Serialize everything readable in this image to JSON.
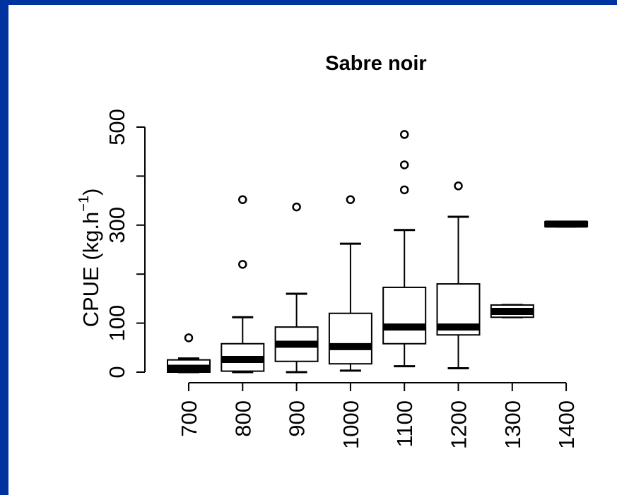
{
  "chart_data": {
    "type": "box",
    "title": "Sabre noir",
    "ylabel": "CPUE (kg.h",
    "ylabel_superscript": "−1",
    "ylabel_close": ")",
    "xlabel": "",
    "ylim": [
      0,
      500
    ],
    "yticks": [
      0,
      100,
      300,
      500
    ],
    "categories": [
      "700",
      "800",
      "900",
      "1000",
      "1100",
      "1200",
      "1300",
      "1400"
    ],
    "boxes": [
      {
        "whisker_low": 0,
        "q1": 0,
        "median": 8,
        "q3": 25,
        "whisker_high": 28,
        "outliers": [
          70
        ]
      },
      {
        "whisker_low": 0,
        "q1": 2,
        "median": 26,
        "q3": 58,
        "whisker_high": 112,
        "outliers": [
          220,
          352
        ]
      },
      {
        "whisker_low": 0,
        "q1": 22,
        "median": 57,
        "q3": 92,
        "whisker_high": 160,
        "outliers": [
          337
        ]
      },
      {
        "whisker_low": 3,
        "q1": 17,
        "median": 52,
        "q3": 120,
        "whisker_high": 262,
        "outliers": [
          352
        ]
      },
      {
        "whisker_low": 12,
        "q1": 58,
        "median": 92,
        "q3": 173,
        "whisker_high": 290,
        "outliers": [
          372,
          423,
          485
        ]
      },
      {
        "whisker_low": 8,
        "q1": 76,
        "median": 92,
        "q3": 180,
        "whisker_high": 317,
        "outliers": [
          380
        ]
      },
      {
        "whisker_low": 112,
        "q1": 112,
        "median": 124,
        "q3": 137,
        "whisker_high": 137,
        "outliers": []
      },
      {
        "whisker_low": 297,
        "q1": 297,
        "median": 302,
        "q3": 307,
        "whisker_high": 307,
        "outliers": []
      }
    ],
    "grid": false,
    "legend": "none"
  },
  "colors": {
    "background_border": "#0033a0",
    "panel": "#ffffff",
    "ink": "#000000"
  }
}
